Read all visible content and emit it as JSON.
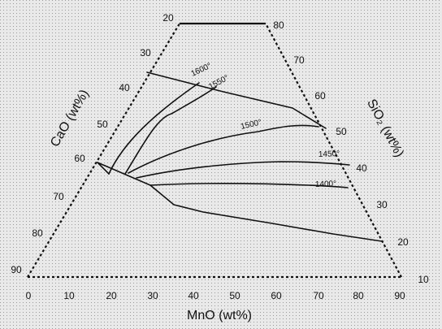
{
  "axes": {
    "bottom": {
      "title": "MnO (wt%)",
      "ticks": [
        "0",
        "10",
        "20",
        "30",
        "40",
        "50",
        "60",
        "70",
        "80",
        "90"
      ]
    },
    "left": {
      "title": "CaO (wt%)",
      "ticks": [
        "90",
        "80",
        "70",
        "60",
        "50",
        "40",
        "30",
        "20"
      ]
    },
    "right": {
      "title": "SiO₂ (wt%)",
      "ticks": [
        "10",
        "20",
        "30",
        "40",
        "50",
        "60",
        "70",
        "80"
      ]
    }
  },
  "isotherms": [
    {
      "label": "1600°"
    },
    {
      "label": "1550°"
    },
    {
      "label": "1500°"
    },
    {
      "label": "1450°"
    },
    {
      "label": "1400°"
    }
  ],
  "colors": {
    "background": "#e9e9e9",
    "ink": "#111111",
    "dots": "#9a9a9a"
  }
}
